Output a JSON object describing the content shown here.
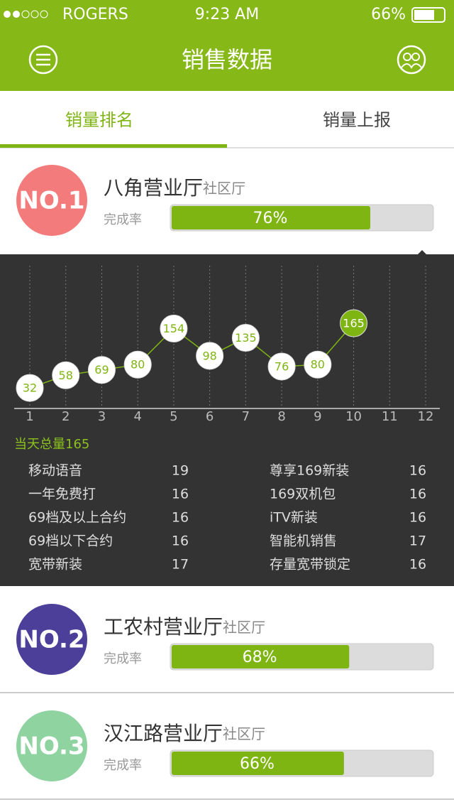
{
  "status_bar": {
    "carrier": "ROGERS",
    "time": "9:23 AM",
    "battery": "66%"
  },
  "header": {
    "title": "销售数据"
  },
  "tabs": [
    "销量排名",
    "销量上报"
  ],
  "stores": [
    {
      "rank": "NO.1",
      "name": "八角营业厅",
      "kind": "社区厅",
      "rate_label": "完成率",
      "rate": {
        "value": 76,
        "label": "76%"
      },
      "color": "#f47b7b"
    },
    {
      "rank": "NO.2",
      "name": "工农村营业厅",
      "kind": "社区厅",
      "rate_label": "完成率",
      "rate": {
        "value": 68,
        "label": "68%"
      },
      "color": "#4b3f99"
    },
    {
      "rank": "NO.3",
      "name": "汉江路营业厅",
      "kind": "社区厅",
      "rate_label": "完成率",
      "rate": {
        "value": 66,
        "label": "66%"
      },
      "color": "#8fd3a0"
    }
  ],
  "chart_data": {
    "type": "line",
    "x": [
      1,
      2,
      3,
      4,
      5,
      6,
      7,
      8,
      9,
      10,
      11,
      12
    ],
    "values": [
      32,
      58,
      69,
      80,
      154,
      98,
      135,
      76,
      80,
      165,
      null,
      null
    ],
    "point_colors": [
      "#ffffff",
      "#ffffff",
      "#ffffff",
      "#ffffff",
      "#ffffff",
      "#ffffff",
      "#ffffff",
      "#ffffff",
      "#ffffff",
      "#7fb512",
      null,
      null
    ],
    "color": "#7fb512",
    "ylim": [
      0,
      200
    ],
    "xticks": [
      1,
      2,
      3,
      4,
      5,
      6,
      7,
      8,
      9,
      10,
      11,
      12
    ]
  },
  "summary": {
    "total": "当天总量165",
    "items": [
      [
        {
          "name": "移动语音",
          "value": 19
        },
        {
          "name": "尊享169新装",
          "value": 16
        }
      ],
      [
        {
          "name": "一年免费打",
          "value": 16
        },
        {
          "name": "169双机包",
          "value": 16
        }
      ],
      [
        {
          "name": "69档及以上合约",
          "value": 16
        },
        {
          "name": "iTV新装",
          "value": 16
        }
      ],
      [
        {
          "name": "69档以下合约",
          "value": 16
        },
        {
          "name": "智能机销售",
          "value": 17
        }
      ],
      [
        {
          "name": "宽带新装",
          "value": 17
        },
        {
          "name": "存量宽带锁定",
          "value": 16
        }
      ]
    ]
  }
}
